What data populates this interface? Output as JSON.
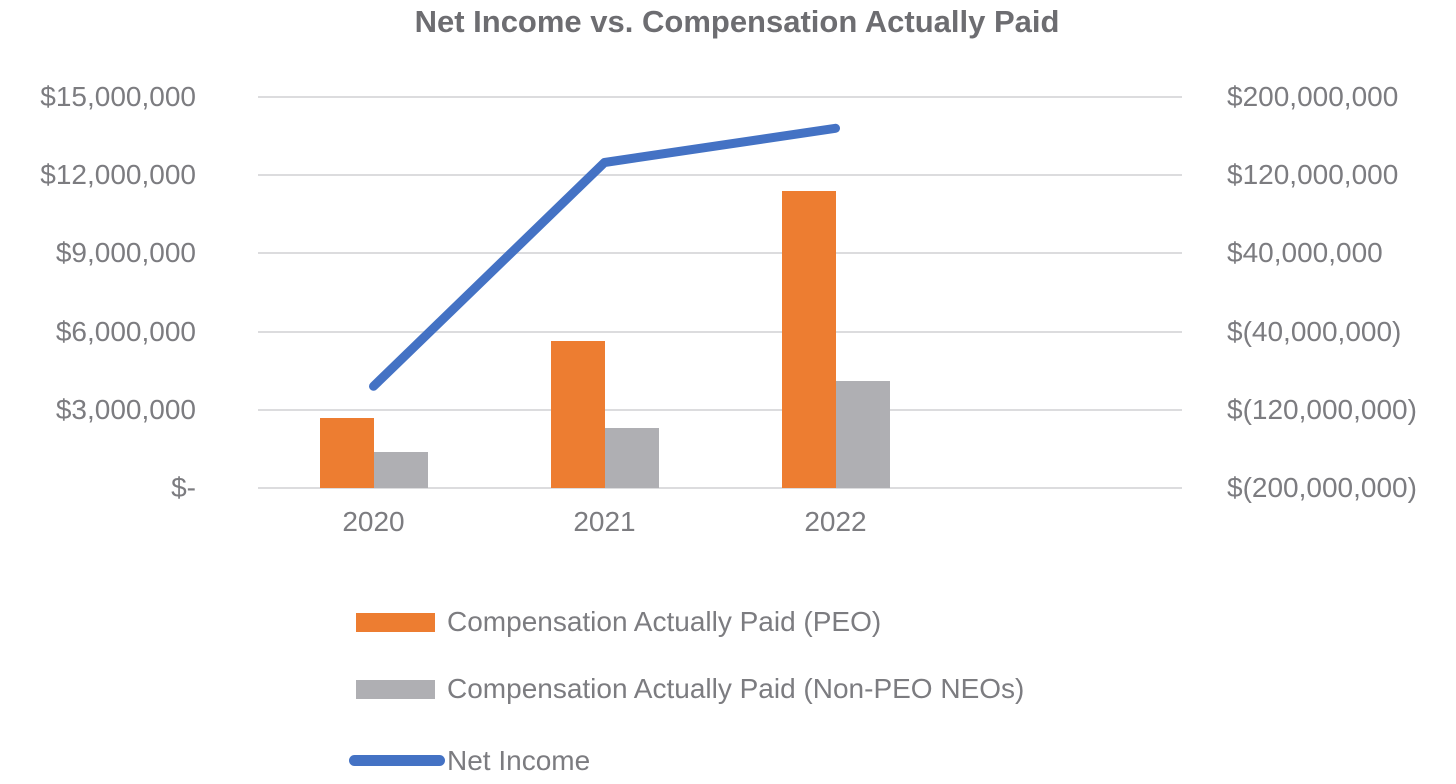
{
  "chart_data": {
    "type": "combo-bar-line",
    "title": "Net Income vs. Compensation Actually Paid",
    "categories": [
      "2020",
      "2021",
      "2022"
    ],
    "series": [
      {
        "name": "Compensation Actually Paid (PEO)",
        "type": "bar",
        "axis": "left",
        "color": "#ED7D31",
        "values": [
          2700000,
          5650000,
          11400000
        ]
      },
      {
        "name": "Compensation Actually Paid (Non-PEO NEOs)",
        "type": "bar",
        "axis": "left",
        "color": "#AFAFB3",
        "values": [
          1400000,
          2300000,
          4100000
        ]
      },
      {
        "name": "Net Income",
        "type": "line",
        "axis": "right",
        "color": "#4472C4",
        "values": [
          -96000000,
          133000000,
          168000000
        ]
      }
    ],
    "left_axis": {
      "tick_labels": [
        "$15,000,000",
        "$12,000,000",
        "$9,000,000",
        "$6,000,000",
        "$3,000,000",
        "$-"
      ],
      "min": 0,
      "max": 15000000
    },
    "right_axis": {
      "tick_labels": [
        "$200,000,000",
        "$120,000,000",
        "$40,000,000",
        "$(40,000,000)",
        "$(120,000,000)",
        "$(200,000,000)"
      ],
      "min": -200000000,
      "max": 200000000
    },
    "grid": true,
    "legend_position": "bottom-left",
    "colors": {
      "gridline": "#DCDCDE",
      "title_text": "#6D6D71",
      "axis_text": "#7C7C80"
    }
  }
}
